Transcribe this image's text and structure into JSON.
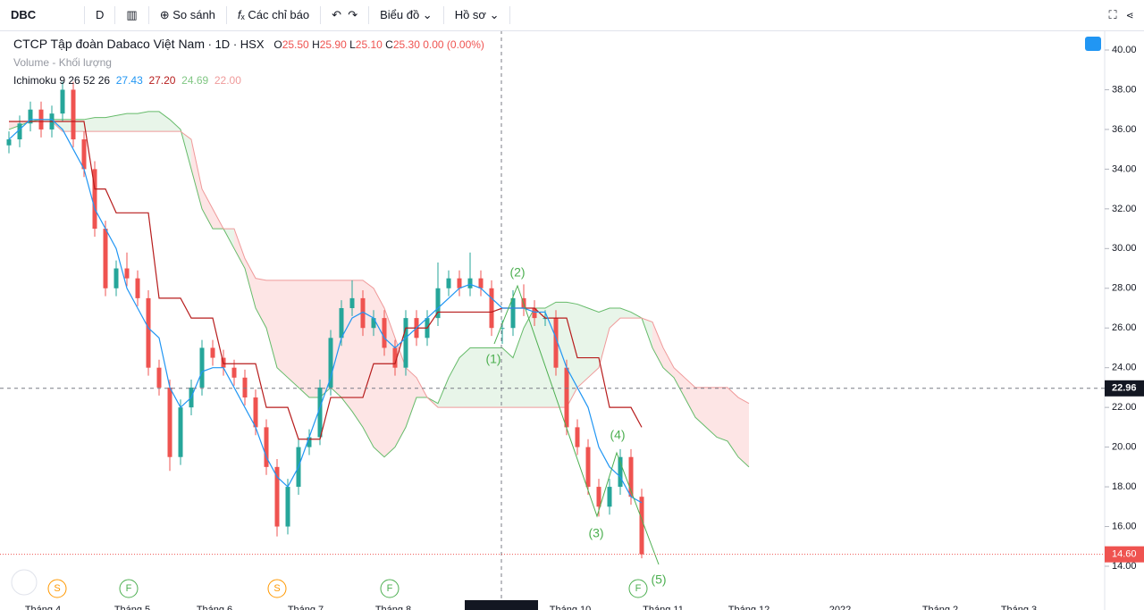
{
  "toolbar": {
    "symbol": "DBC",
    "interval": "D",
    "compare": "So sánh",
    "indicators": "Các chỉ báo",
    "chart": "Biểu đồ",
    "profile": "Hồ sơ"
  },
  "legend": {
    "name": "CTCP Tập đoàn Dabaco Việt Nam",
    "interval": "1D",
    "exchange": "HSX",
    "open_label": "O",
    "open": "25.50",
    "high_label": "H",
    "high": "25.90",
    "low_label": "L",
    "low": "25.10",
    "close_label": "C",
    "close": "25.30",
    "change": "0.00 (0.00%)",
    "volume": "Volume - Khối lượng",
    "ichimoku": "Ichimoku 9 26 52 26",
    "ichi_values": [
      "27.43",
      "27.20",
      "24.69",
      "22.00"
    ]
  },
  "chart_data": {
    "type": "candlestick",
    "ohlc": [
      [
        35.2,
        35.9,
        34.8,
        35.5
      ],
      [
        35.5,
        36.7,
        35.1,
        36.3
      ],
      [
        36.3,
        37.4,
        35.9,
        37.0
      ],
      [
        37.0,
        37.4,
        35.6,
        36.0
      ],
      [
        36.0,
        37.2,
        35.6,
        36.8
      ],
      [
        36.8,
        38.4,
        36.4,
        38.0
      ],
      [
        38.0,
        38.4,
        35.1,
        35.5
      ],
      [
        35.5,
        35.9,
        33.6,
        34.0
      ],
      [
        34.0,
        34.4,
        30.6,
        31.0
      ],
      [
        31.0,
        31.4,
        27.6,
        28.0
      ],
      [
        28.0,
        29.4,
        27.6,
        29.0
      ],
      [
        29.0,
        29.8,
        28.1,
        28.5
      ],
      [
        28.5,
        28.9,
        27.1,
        27.5
      ],
      [
        27.5,
        27.9,
        23.6,
        24.0
      ],
      [
        24.0,
        24.4,
        22.6,
        23.0
      ],
      [
        23.0,
        23.4,
        18.8,
        19.5
      ],
      [
        19.5,
        22.4,
        19.1,
        22.0
      ],
      [
        22.0,
        23.4,
        21.6,
        23.0
      ],
      [
        23.0,
        25.4,
        22.6,
        25.0
      ],
      [
        25.0,
        25.4,
        24.1,
        24.5
      ],
      [
        24.5,
        24.9,
        23.6,
        24.0
      ],
      [
        24.0,
        24.4,
        23.1,
        23.5
      ],
      [
        23.5,
        23.9,
        22.1,
        22.5
      ],
      [
        22.5,
        22.9,
        20.6,
        21.0
      ],
      [
        21.0,
        21.4,
        18.6,
        19.0
      ],
      [
        19.0,
        19.4,
        15.5,
        16.0
      ],
      [
        16.0,
        18.4,
        15.6,
        18.0
      ],
      [
        18.0,
        20.4,
        17.6,
        20.0
      ],
      [
        20.0,
        20.9,
        19.6,
        20.5
      ],
      [
        20.5,
        23.4,
        20.1,
        23.0
      ],
      [
        23.0,
        25.9,
        22.6,
        25.5
      ],
      [
        25.5,
        27.4,
        25.1,
        27.0
      ],
      [
        27.0,
        28.4,
        26.6,
        27.5
      ],
      [
        27.5,
        27.9,
        25.6,
        26.0
      ],
      [
        26.0,
        26.9,
        25.6,
        26.5
      ],
      [
        26.5,
        26.9,
        24.6,
        25.0
      ],
      [
        25.0,
        25.4,
        23.6,
        24.0
      ],
      [
        24.0,
        26.9,
        23.6,
        26.5
      ],
      [
        26.5,
        26.9,
        25.1,
        25.5
      ],
      [
        25.5,
        26.9,
        25.1,
        26.5
      ],
      [
        26.5,
        29.3,
        26.1,
        28.0
      ],
      [
        28.0,
        28.9,
        27.6,
        28.5
      ],
      [
        28.5,
        28.9,
        27.6,
        28.0
      ],
      [
        28.0,
        29.8,
        27.6,
        28.5
      ],
      [
        28.5,
        28.9,
        27.6,
        28.0
      ],
      [
        28.0,
        28.4,
        25.6,
        26.0
      ],
      [
        26.0,
        26.4,
        25.2,
        26.0
      ],
      [
        26.0,
        27.9,
        25.6,
        27.5
      ],
      [
        27.5,
        28.2,
        26.6,
        27.0
      ],
      [
        27.0,
        27.4,
        26.1,
        26.5
      ],
      [
        26.5,
        26.9,
        26.1,
        26.5
      ],
      [
        26.5,
        26.9,
        23.6,
        24.0
      ],
      [
        24.0,
        24.4,
        20.6,
        21.0
      ],
      [
        21.0,
        21.4,
        19.6,
        20.0
      ],
      [
        20.0,
        20.4,
        17.6,
        18.0
      ],
      [
        18.0,
        18.4,
        16.5,
        17.0
      ],
      [
        17.0,
        18.4,
        16.6,
        18.0
      ],
      [
        18.0,
        19.9,
        17.6,
        19.5
      ],
      [
        19.5,
        19.9,
        17.1,
        17.5
      ],
      [
        17.5,
        17.9,
        14.4,
        14.6
      ]
    ],
    "up_color": "#26a69a",
    "down_color": "#ef5350",
    "tenkan": {
      "color": "#2196f3",
      "values": [
        35.5,
        36,
        36.5,
        36.5,
        36.5,
        36,
        35,
        34,
        32,
        31,
        30,
        28,
        27,
        26,
        25.5,
        23,
        22,
        22.5,
        23.8,
        24,
        24,
        23,
        22,
        21,
        19.5,
        18.5,
        18,
        19,
        20.5,
        22,
        23.5,
        25.5,
        26.5,
        26.8,
        26.5,
        25.5,
        25,
        25.5,
        26,
        26.5,
        27,
        27.5,
        28,
        28.2,
        28,
        27.5,
        27,
        27,
        27,
        26.8,
        26.8,
        25.5,
        24,
        23,
        22,
        20,
        19,
        18.5,
        17.5,
        17.2
      ]
    },
    "kijun": {
      "color": "#b71c1c",
      "values": [
        36.4,
        36.4,
        36.4,
        36.4,
        36.4,
        36.4,
        36.4,
        36.4,
        33,
        33,
        31.8,
        31.8,
        31.8,
        31.8,
        27.5,
        27.5,
        27.5,
        26.5,
        26.5,
        26.5,
        24.2,
        24.2,
        24.2,
        24.2,
        22,
        22,
        22,
        20.4,
        20.4,
        20.4,
        22.5,
        22.5,
        22.5,
        22.5,
        24.2,
        24.2,
        24.2,
        26,
        26,
        26,
        26.8,
        26.8,
        26.8,
        26.8,
        26.8,
        26.8,
        27,
        27,
        27,
        27,
        26.5,
        26.5,
        26.5,
        24.5,
        24.5,
        24.5,
        22,
        22,
        22,
        21
      ]
    },
    "span_a": {
      "color": "#66bb6a",
      "values": [
        36,
        36.2,
        36.4,
        36.5,
        36.5,
        36.5,
        36.5,
        36.5,
        36.6,
        36.6,
        36.7,
        36.8,
        36.8,
        36.9,
        36.9,
        36.5,
        36,
        34,
        32,
        31,
        31,
        30,
        29,
        27,
        26,
        24,
        23.5,
        23,
        22.5,
        22.5,
        23,
        22.5,
        21.8,
        21,
        20,
        19.5,
        20,
        21,
        22.5,
        22.5,
        22.2,
        23.5,
        24.5,
        25,
        25,
        25,
        25,
        24.5,
        26,
        27,
        27,
        27.3,
        27.3,
        27.2,
        27,
        26.8,
        27,
        27,
        26.8,
        26.5,
        25,
        24,
        23.5,
        22.5,
        21.5,
        21,
        20.5,
        20.3,
        19.5,
        19
      ]
    },
    "span_b": {
      "color": "#ef9a9a",
      "values": [
        36.4,
        36.4,
        36.4,
        36.4,
        36.4,
        35.9,
        35.9,
        35.9,
        35.9,
        35.9,
        35.9,
        35.9,
        35.9,
        35.9,
        35.9,
        35.9,
        35.9,
        35.5,
        33,
        32,
        31,
        31,
        29.5,
        28.5,
        28.4,
        28.4,
        28.4,
        28.4,
        28.4,
        28.4,
        28.4,
        28.4,
        28.4,
        28.4,
        28,
        27,
        25.5,
        24,
        23.5,
        22.5,
        22,
        22,
        22,
        22,
        22,
        22,
        22,
        22,
        22,
        22,
        22,
        22,
        22,
        23,
        23.5,
        24,
        26,
        26.5,
        26.5,
        26.5,
        26.3,
        25,
        24,
        23.5,
        23,
        23,
        23,
        23,
        22.5,
        22.2
      ]
    },
    "ylim": [
      14,
      40
    ],
    "yticks": [
      {
        "value": 14,
        "label": "14.00"
      },
      {
        "value": 16,
        "label": "16.00"
      },
      {
        "value": 18,
        "label": "18.00"
      },
      {
        "value": 20,
        "label": "20.00"
      },
      {
        "value": 22,
        "label": "22.00"
      },
      {
        "value": 24,
        "label": "24.00"
      },
      {
        "value": 26,
        "label": "26.00"
      },
      {
        "value": 28,
        "label": "28.00"
      },
      {
        "value": 30,
        "label": "30.00"
      },
      {
        "value": 32,
        "label": "32.00"
      },
      {
        "value": 34,
        "label": "34.00"
      },
      {
        "value": 36,
        "label": "36.00"
      },
      {
        "value": 38,
        "label": "38.00"
      },
      {
        "value": 40,
        "label": "40.00"
      }
    ],
    "crosshair": {
      "value": 22.96,
      "label": "22.96"
    },
    "last_price": {
      "value": 14.6,
      "label": "14.60"
    },
    "wave_labels": [
      "(1)",
      "(2)",
      "(3)",
      "(4)",
      "(5)"
    ],
    "markers": [
      "S",
      "F",
      "S",
      "F",
      "F"
    ],
    "x_labels": [
      "Tháng 4",
      "Tháng 5",
      "Tháng 6",
      "Tháng 7",
      "Tháng 8",
      "Tháng 10",
      "Tháng 11",
      "Tháng 12",
      "2022",
      "Tháng 2",
      "Tháng 3"
    ]
  }
}
